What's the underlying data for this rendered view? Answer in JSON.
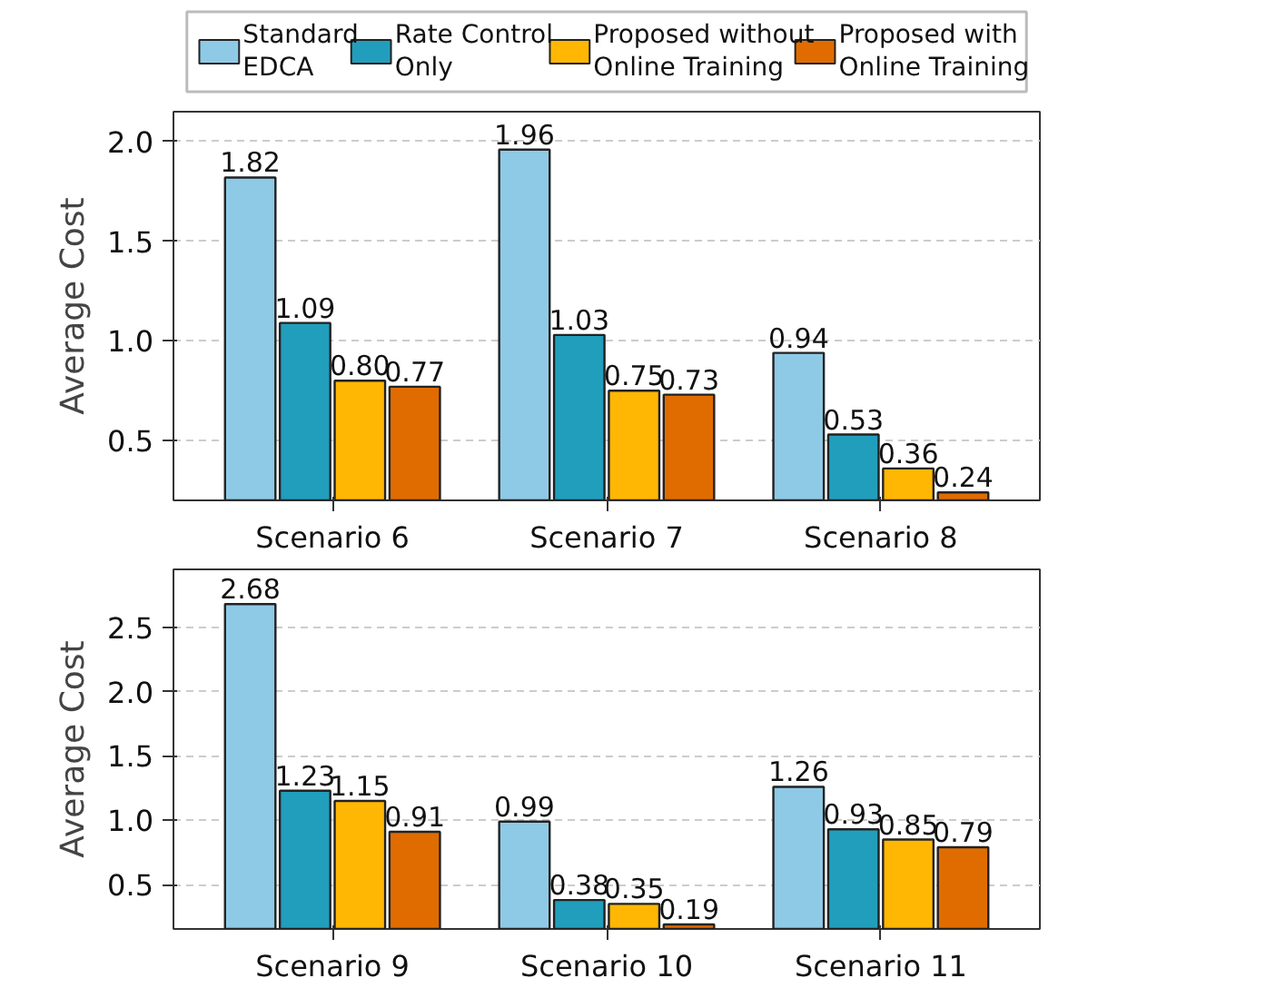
{
  "chart_data": [
    {
      "type": "bar",
      "categories": [
        "Scenario 6",
        "Scenario 7",
        "Scenario 8"
      ],
      "ylabel": "Average Cost",
      "ylim": [
        0.2,
        2.15
      ],
      "yticks": [
        {
          "value": 0.5,
          "label": "0.5"
        },
        {
          "value": 1.0,
          "label": "1.0"
        },
        {
          "value": 1.5,
          "label": "1.5"
        },
        {
          "value": 2.0,
          "label": "2.0"
        }
      ],
      "grid": "y",
      "legend": "top",
      "series": [
        {
          "name": "Standard EDCA",
          "color": "#8ecae6",
          "values": [
            1.82,
            1.96,
            0.94
          ],
          "value_labels": [
            "1.82",
            "1.96",
            "0.94"
          ]
        },
        {
          "name": "Rate Control Only",
          "color": "#219ebc",
          "values": [
            1.09,
            1.03,
            0.53
          ],
          "value_labels": [
            "1.09",
            "1.03",
            "0.53"
          ]
        },
        {
          "name": "Proposed without Online Training",
          "color": "#ffb703",
          "values": [
            0.8,
            0.75,
            0.36
          ],
          "value_labels": [
            "0.80",
            "0.75",
            "0.36"
          ]
        },
        {
          "name": "Proposed with Online Training",
          "color": "#e06c00",
          "values": [
            0.77,
            0.73,
            0.24
          ],
          "value_labels": [
            "0.77",
            "0.73",
            "0.24"
          ]
        }
      ]
    },
    {
      "type": "bar",
      "categories": [
        "Scenario 9",
        "Scenario 10",
        "Scenario 11"
      ],
      "ylabel": "Average Cost",
      "ylim": [
        0.155,
        2.95
      ],
      "yticks": [
        {
          "value": 0.5,
          "label": "0.5"
        },
        {
          "value": 1.0,
          "label": "1.0"
        },
        {
          "value": 1.5,
          "label": "1.5"
        },
        {
          "value": 2.0,
          "label": "2.0"
        },
        {
          "value": 2.5,
          "label": "2.5"
        }
      ],
      "grid": "y",
      "series": [
        {
          "color": "#8ecae6",
          "values": [
            2.68,
            0.99,
            1.26
          ],
          "value_labels": [
            "2.68",
            "0.99",
            "1.26"
          ]
        },
        {
          "color": "#219ebc",
          "values": [
            1.23,
            0.38,
            0.93
          ],
          "value_labels": [
            "1.23",
            "0.38",
            "0.93"
          ]
        },
        {
          "color": "#ffb703",
          "values": [
            1.15,
            0.35,
            0.85
          ],
          "value_labels": [
            "1.15",
            "0.35",
            "0.85"
          ]
        },
        {
          "color": "#e06c00",
          "values": [
            0.91,
            0.19,
            0.79
          ],
          "value_labels": [
            "0.91",
            "0.19",
            "0.79"
          ]
        }
      ]
    }
  ]
}
